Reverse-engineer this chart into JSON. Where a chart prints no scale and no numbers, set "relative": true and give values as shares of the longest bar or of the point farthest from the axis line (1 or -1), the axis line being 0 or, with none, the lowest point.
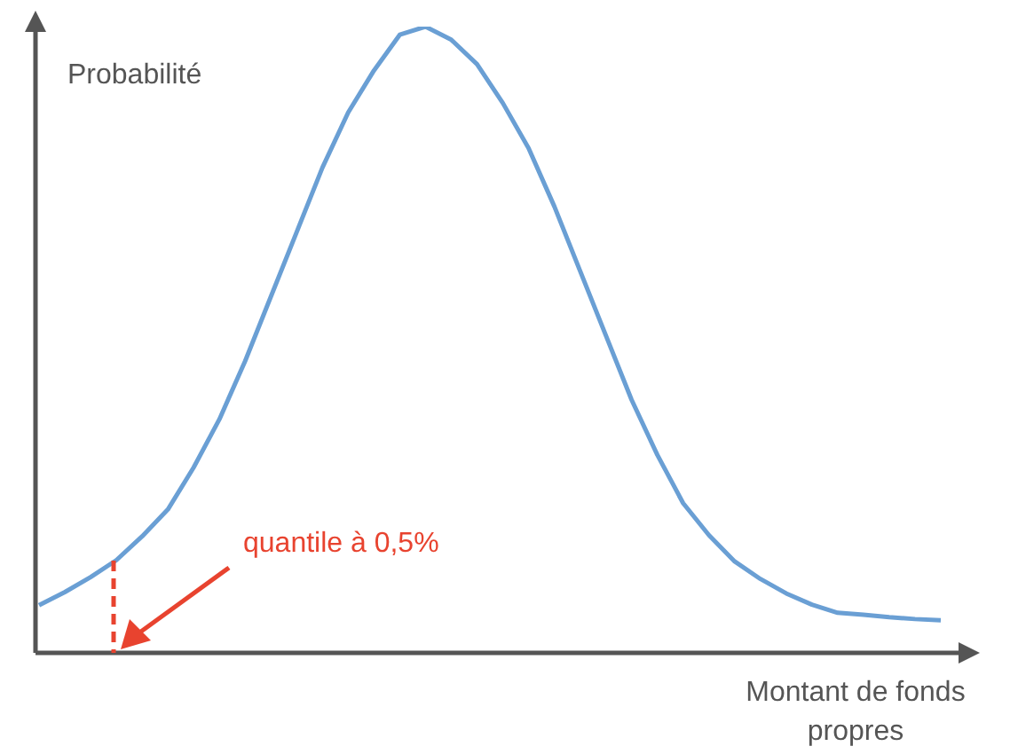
{
  "chart_data": {
    "type": "line",
    "relative": true,
    "ylabel": "Probabilité",
    "xlabel": "Montant de fonds propres",
    "annotations": [
      "quantile à 0,5%"
    ],
    "marker": "none",
    "legend": false,
    "categories": [
      null,
      null,
      null,
      null,
      null,
      null,
      null,
      null,
      null,
      null,
      null,
      null,
      null,
      null,
      null,
      null,
      null,
      null,
      null,
      null,
      null,
      null,
      null,
      null,
      null,
      null,
      null,
      null,
      null,
      null,
      null,
      null,
      null,
      null,
      null,
      null
    ],
    "series": [
      {
        "color": "#6a9fd4",
        "values": [
          0.076,
          0.097,
          0.121,
          0.148,
          0.186,
          0.229,
          0.296,
          0.373,
          0.466,
          0.569,
          0.672,
          0.775,
          0.863,
          0.93,
          0.987,
          1,
          0.979,
          0.94,
          0.878,
          0.806,
          0.713,
          0.61,
          0.507,
          0.404,
          0.316,
          0.239,
          0.188,
          0.146,
          0.118,
          0.095,
          0.077,
          0.064,
          0.061,
          0.057,
          0.054,
          0.052
        ]
      }
    ]
  }
}
